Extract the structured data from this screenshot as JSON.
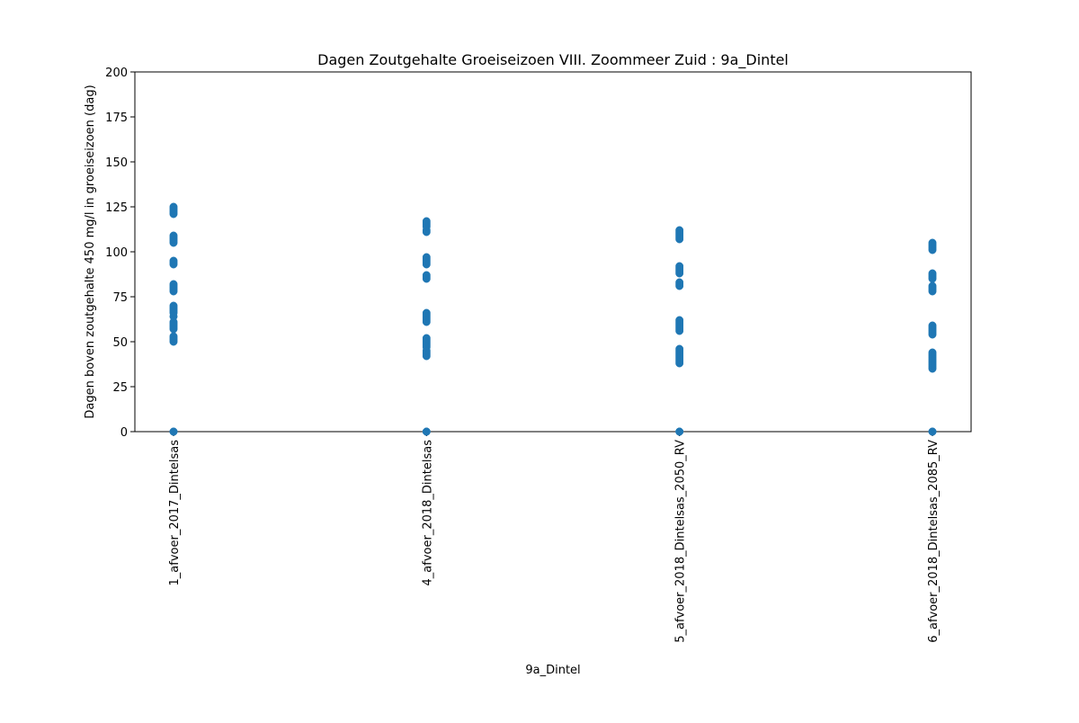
{
  "chart_data": {
    "type": "scatter",
    "title": "Dagen Zoutgehalte Groeiseizoen VIII. Zoommeer Zuid : 9a_Dintel",
    "xlabel": "9a_Dintel",
    "ylabel": "Dagen boven zoutgehalte 450 mg/l in groeiseizoen (dag)",
    "categories": [
      "1_afvoer_2017_Dintelsas",
      "4_afvoer_2018_Dintelsas",
      "5_afvoer_2018_Dintelsas_2050_RV",
      "6_afvoer_2018_Dintelsas_2085_RV"
    ],
    "ylim": [
      0,
      200
    ],
    "yticks": [
      0,
      25,
      50,
      75,
      100,
      125,
      150,
      175,
      200
    ],
    "grid": false,
    "marker_color": "#1f77b4",
    "series": [
      {
        "category": "1_afvoer_2017_Dintelsas",
        "values": [
          0,
          0,
          50,
          51,
          52,
          53,
          57,
          58,
          59,
          60,
          61,
          64,
          66,
          67,
          68,
          69,
          70,
          78,
          79,
          80,
          81,
          82,
          93,
          94,
          95,
          105,
          106,
          107,
          108,
          109,
          121,
          122,
          123,
          124,
          125
        ]
      },
      {
        "category": "4_afvoer_2018_Dintelsas",
        "values": [
          0,
          0,
          42,
          43,
          44,
          45,
          47,
          48,
          49,
          50,
          51,
          52,
          61,
          62,
          63,
          64,
          65,
          66,
          85,
          86,
          87,
          93,
          94,
          95,
          96,
          97,
          111,
          112,
          114,
          115,
          116,
          117
        ]
      },
      {
        "category": "5_afvoer_2018_Dintelsas_2050_RV",
        "values": [
          0,
          0,
          38,
          39,
          40,
          41,
          42,
          43,
          44,
          45,
          46,
          56,
          57,
          58,
          59,
          60,
          61,
          62,
          81,
          82,
          83,
          88,
          89,
          90,
          91,
          92,
          107,
          108,
          109,
          110,
          111,
          112
        ]
      },
      {
        "category": "6_afvoer_2018_Dintelsas_2085_RV",
        "values": [
          0,
          0,
          35,
          36,
          37,
          38,
          39,
          40,
          41,
          42,
          43,
          44,
          54,
          55,
          56,
          57,
          58,
          59,
          78,
          79,
          80,
          81,
          85,
          86,
          87,
          88,
          101,
          102,
          103,
          104,
          105
        ]
      }
    ]
  }
}
